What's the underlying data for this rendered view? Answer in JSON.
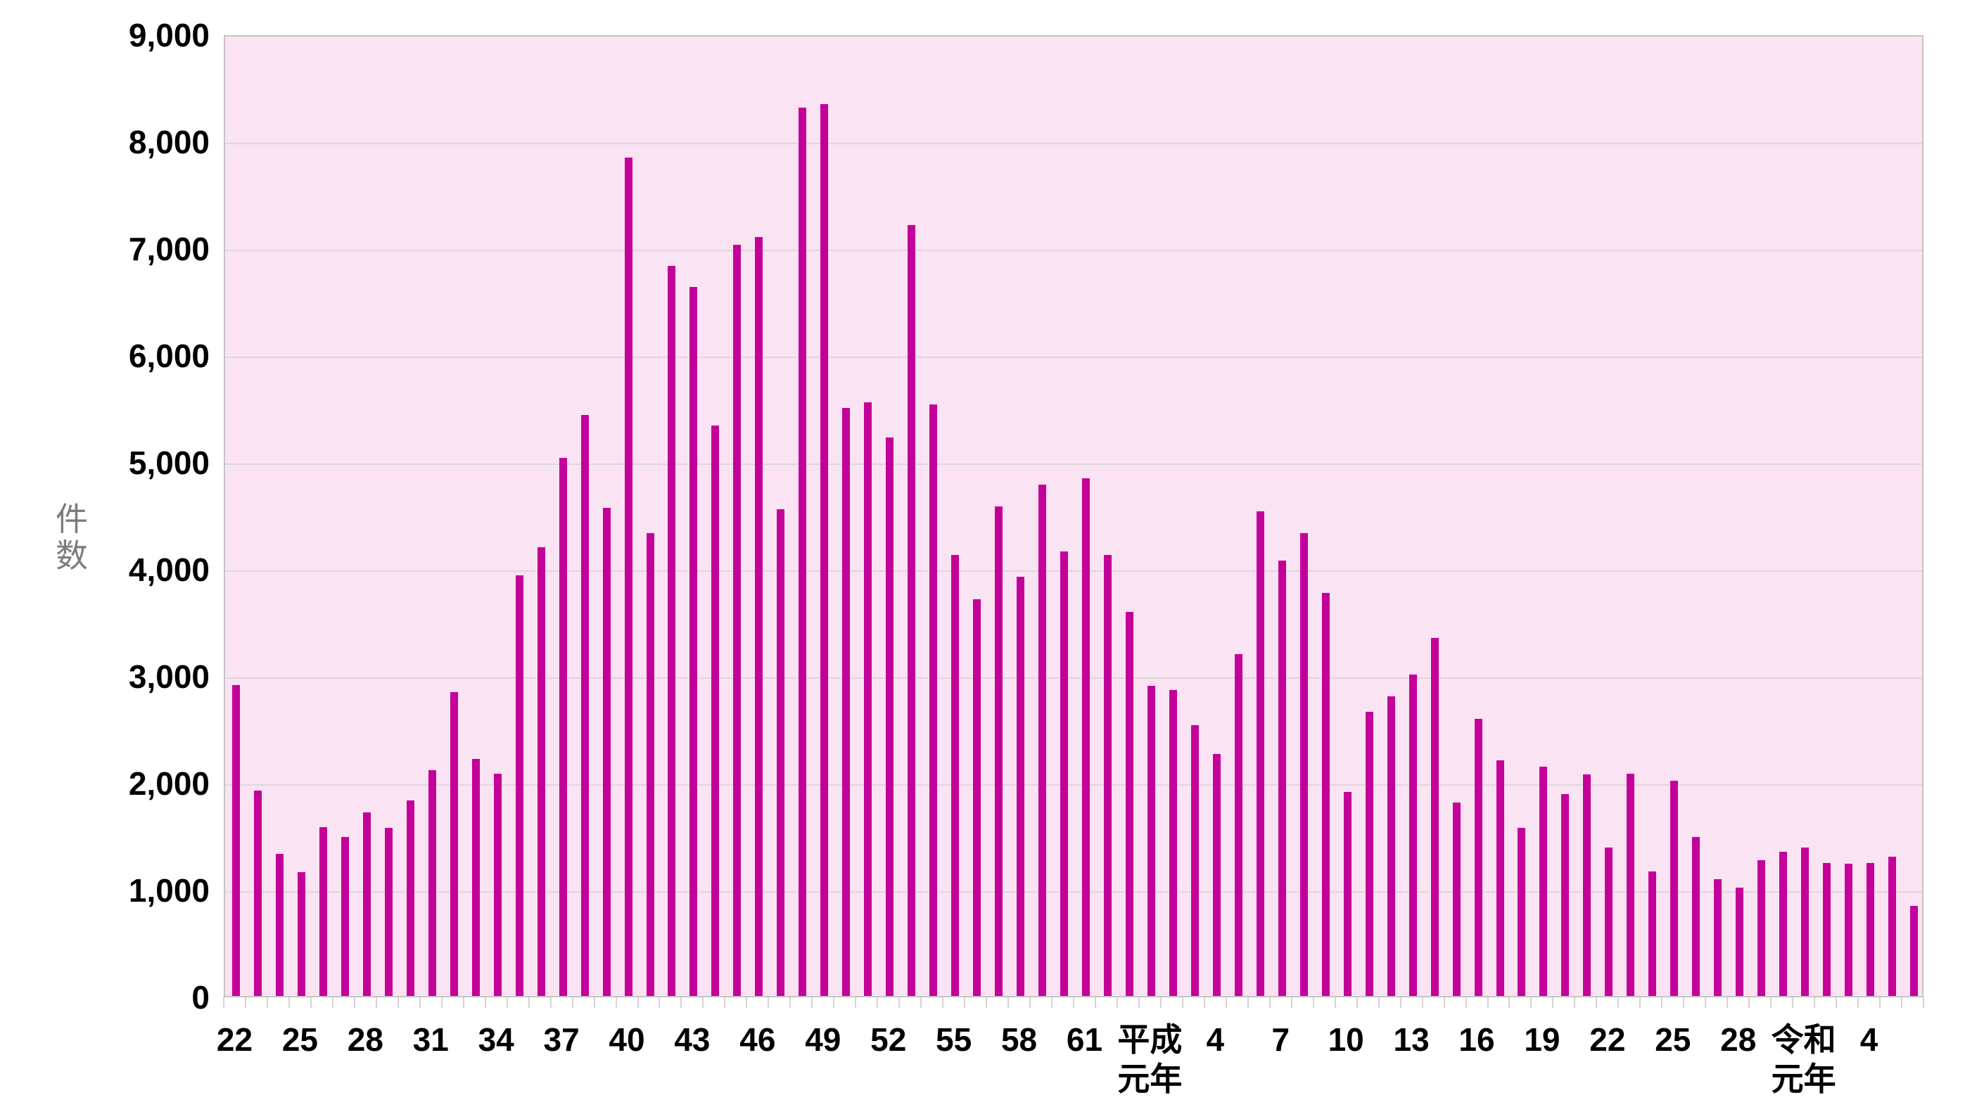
{
  "chart_data": {
    "type": "bar",
    "title": "",
    "xlabel": "",
    "ylabel": "件\n数",
    "ylabel_horizontal": "件数",
    "legend": "none",
    "grid": "horizontal",
    "ylim": [
      0,
      9000
    ],
    "ytick_interval": 1000,
    "ytick_labels": [
      "0",
      "1,000",
      "2,000",
      "3,000",
      "4,000",
      "5,000",
      "6,000",
      "7,000",
      "8,000",
      "9,000"
    ],
    "bar_color": "#c4009a",
    "plot_background": "#fae3f2",
    "gridline_color": "#dcd8da",
    "axis_text_color": "#000000",
    "ylabel_text_color": "#7c7c7c",
    "categories": [
      "昭和22",
      "昭和23",
      "昭和24",
      "昭和25",
      "昭和26",
      "昭和27",
      "昭和28",
      "昭和29",
      "昭和30",
      "昭和31",
      "昭和32",
      "昭和33",
      "昭和34",
      "昭和35",
      "昭和36",
      "昭和37",
      "昭和38",
      "昭和39",
      "昭和40",
      "昭和41",
      "昭和42",
      "昭和43",
      "昭和44",
      "昭和45",
      "昭和46",
      "昭和47",
      "昭和48",
      "昭和49",
      "昭和50",
      "昭和51",
      "昭和52",
      "昭和53",
      "昭和54",
      "昭和55",
      "昭和56",
      "昭和57",
      "昭和58",
      "昭和59",
      "昭和60",
      "昭和61",
      "昭和62",
      "昭和63",
      "平成元",
      "平成2",
      "平成3",
      "平成4",
      "平成5",
      "平成6",
      "平成7",
      "平成8",
      "平成9",
      "平成10",
      "平成11",
      "平成12",
      "平成13",
      "平成14",
      "平成15",
      "平成16",
      "平成17",
      "平成18",
      "平成19",
      "平成20",
      "平成21",
      "平成22",
      "平成23",
      "平成24",
      "平成25",
      "平成26",
      "平成27",
      "平成28",
      "平成29",
      "平成30",
      "令和元",
      "令和2",
      "令和3",
      "令和4",
      "令和5",
      "令和6"
    ],
    "values": [
      2910,
      1920,
      1330,
      1155,
      1580,
      1490,
      1720,
      1570,
      1830,
      2110,
      2840,
      2220,
      2080,
      3935,
      4200,
      5035,
      5435,
      4565,
      7845,
      4330,
      6830,
      6630,
      5335,
      7025,
      7100,
      4555,
      8310,
      8345,
      5500,
      5550,
      5225,
      7210,
      5535,
      4125,
      3710,
      4580,
      3920,
      4780,
      4155,
      4840,
      4125,
      3590,
      2900,
      2865,
      2530,
      2265,
      3195,
      4530,
      4075,
      4330,
      3770,
      1910,
      2655,
      2805,
      3005,
      3350,
      1810,
      2590,
      2205,
      1570,
      2145,
      1885,
      2075,
      1385,
      2080,
      1165,
      2010,
      1485,
      1090,
      1015,
      1270,
      1350,
      1390,
      1245,
      1235,
      1245,
      1300,
      840
    ],
    "visible_x_labels": [
      {
        "index": 0,
        "text": "22"
      },
      {
        "index": 3,
        "text": "25"
      },
      {
        "index": 6,
        "text": "28"
      },
      {
        "index": 9,
        "text": "31"
      },
      {
        "index": 12,
        "text": "34"
      },
      {
        "index": 15,
        "text": "37"
      },
      {
        "index": 18,
        "text": "40"
      },
      {
        "index": 21,
        "text": "43"
      },
      {
        "index": 24,
        "text": "46"
      },
      {
        "index": 27,
        "text": "49"
      },
      {
        "index": 30,
        "text": "52"
      },
      {
        "index": 33,
        "text": "55"
      },
      {
        "index": 36,
        "text": "58"
      },
      {
        "index": 39,
        "text": "61"
      },
      {
        "index": 42,
        "text": "平成\n元年"
      },
      {
        "index": 45,
        "text": "4"
      },
      {
        "index": 48,
        "text": "7"
      },
      {
        "index": 51,
        "text": "10"
      },
      {
        "index": 54,
        "text": "13"
      },
      {
        "index": 57,
        "text": "16"
      },
      {
        "index": 60,
        "text": "19"
      },
      {
        "index": 63,
        "text": "22"
      },
      {
        "index": 66,
        "text": "25"
      },
      {
        "index": 69,
        "text": "28"
      },
      {
        "index": 72,
        "text": "令和\n元年"
      },
      {
        "index": 75,
        "text": "4"
      }
    ]
  }
}
